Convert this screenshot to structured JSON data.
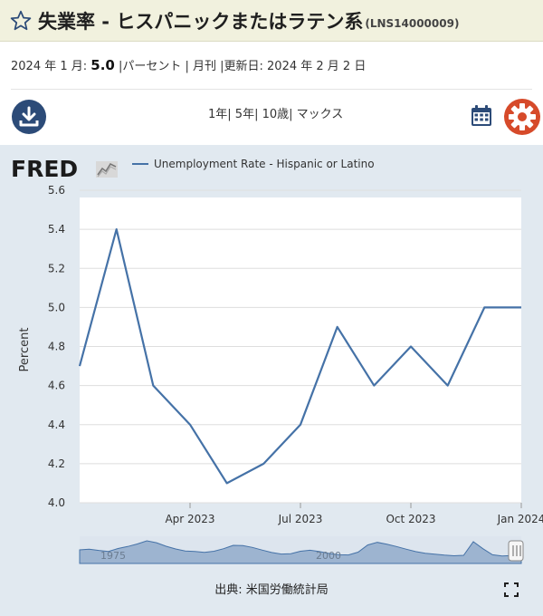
{
  "header": {
    "title": "失業率 - ヒスパニックまたはラテン系",
    "series_id": "(LNS14000009)",
    "favorite_icon": "star-outline-icon"
  },
  "meta": {
    "date_label": "2024 年 1 月: ",
    "value": "5.0",
    "details": " |パーセント | 月刊 |更新日: 2024 年 2 月 2 日"
  },
  "toolbar": {
    "download_icon": "download-icon",
    "ranges": [
      "1年",
      "5年",
      "10歳",
      "マックス"
    ],
    "calendar_icon": "calendar-icon",
    "settings_icon": "gear-icon"
  },
  "colors": {
    "line": "#4572a7",
    "panel_bg": "#e1e9f0",
    "navy": "#2c4b78",
    "orange": "#d64a2a"
  },
  "brand": {
    "logo_text": "FRED"
  },
  "footer": {
    "source": "出典: 米国労働統計局",
    "expand_icon": "expand-icon"
  },
  "chart_data": {
    "type": "line",
    "title": "",
    "xlabel": "",
    "ylabel": "Percent",
    "series": [
      {
        "name": "Unemployment Rate - Hispanic or Latino",
        "x": [
          "2023-01",
          "2023-02",
          "2023-03",
          "2023-04",
          "2023-05",
          "2023-06",
          "2023-07",
          "2023-08",
          "2023-09",
          "2023-10",
          "2023-11",
          "2023-12",
          "2024-01"
        ],
        "values": [
          4.7,
          5.4,
          4.6,
          4.4,
          4.1,
          4.2,
          4.4,
          4.9,
          4.6,
          4.8,
          4.6,
          5.0,
          5.0
        ]
      }
    ],
    "ylim": [
      4.0,
      5.6
    ],
    "yticks": [
      "4.0",
      "4.2",
      "4.4",
      "4.6",
      "4.8",
      "5.0",
      "5.2",
      "5.4",
      "5.6"
    ],
    "xticks": [
      {
        "x": "2023-04",
        "label": "Apr 2023"
      },
      {
        "x": "2023-07",
        "label": "Jul 2023"
      },
      {
        "x": "2023-10",
        "label": "Oct 2023"
      },
      {
        "x": "2024-01",
        "label": "Jan 2024"
      }
    ],
    "grid": true,
    "navigator": {
      "labels": [
        "1975",
        "2000"
      ],
      "series": [
        7.8,
        8.2,
        7.5,
        6.9,
        8.6,
        9.7,
        11.2,
        13.0,
        11.9,
        9.9,
        8.3,
        7.2,
        6.9,
        6.4,
        7.0,
        8.5,
        10.4,
        10.3,
        9.2,
        7.7,
        6.3,
        5.4,
        5.6,
        7.0,
        7.6,
        6.8,
        5.7,
        5.0,
        4.9,
        6.5,
        10.6,
        12.1,
        11.0,
        9.7,
        8.2,
        6.8,
        5.9,
        5.3,
        4.8,
        4.4,
        4.7,
        12.5,
        8.5,
        5.0,
        4.3,
        4.6,
        5.0
      ]
    }
  }
}
